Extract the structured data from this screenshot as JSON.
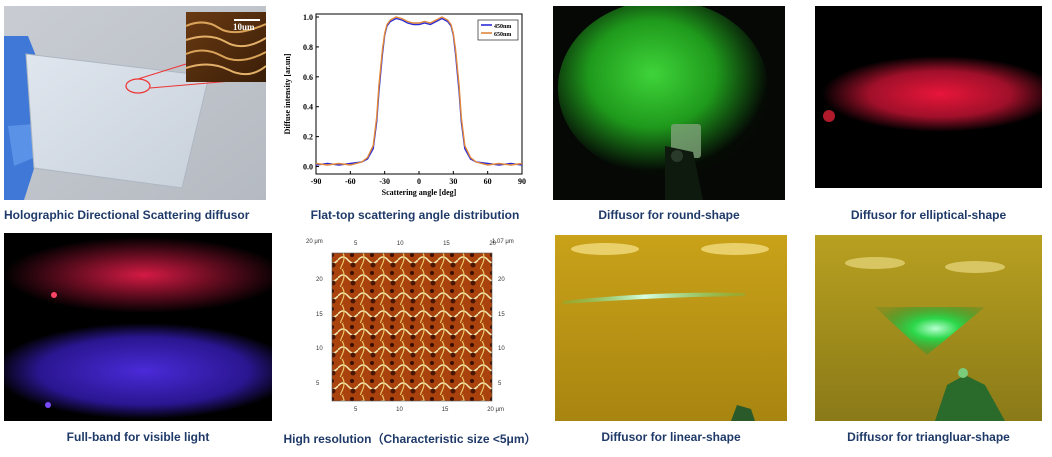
{
  "captions": {
    "holographic": "Holographic Directional Scattering diffusor",
    "flattop": "Flat-top scattering angle distribution",
    "round": "Diffusor for round-shape",
    "elliptical": "Diffusor for elliptical-shape",
    "fullband": "Full-band for visible light",
    "highres": "High resolution（Characteristic size <5μm）",
    "linear": "Diffusor for linear-shape",
    "triangular": "Diffusor for triangluar-shape"
  },
  "sem_inset": {
    "scale_label": "10um"
  },
  "afm_image": {
    "label_tl": "20 μm",
    "label_tr": "1.07 μm",
    "ticks_top": [
      "5",
      "10",
      "15",
      "20"
    ],
    "ticks_bottom": [
      "5",
      "10",
      "15",
      "20 μm"
    ],
    "ticks_left": [
      "20",
      "15",
      "10",
      "5"
    ],
    "ticks_right": [
      "20",
      "15",
      "10",
      "5"
    ]
  },
  "chart_data": {
    "type": "line",
    "xlabel": "Scattering angle [deg]",
    "ylabel": "Diffuse intensity [ar.un]",
    "xlim": [
      -90,
      90
    ],
    "ylim": [
      -0.05,
      1.02
    ],
    "xticks": [
      -90,
      -60,
      -30,
      0,
      30,
      60,
      90
    ],
    "yticks": [
      0.0,
      0.2,
      0.4,
      0.6,
      0.8,
      1.0
    ],
    "xtick_labels": [
      "-90",
      "-60",
      "-30",
      "0",
      "30",
      "60",
      "90"
    ],
    "ytick_labels": [
      "0.0",
      "0.2",
      "0.4",
      "0.6",
      "0.8",
      "1.0"
    ],
    "legend_position": "top-right",
    "grid": false,
    "series": [
      {
        "name": "450nm",
        "color": "#2b2bd6",
        "x": [
          -90,
          -80,
          -70,
          -60,
          -50,
          -45,
          -40,
          -37,
          -35,
          -32,
          -30,
          -28,
          -25,
          -20,
          -15,
          -10,
          -5,
          0,
          5,
          10,
          15,
          20,
          25,
          28,
          30,
          32,
          35,
          37,
          40,
          45,
          50,
          60,
          70,
          80,
          90
        ],
        "y": [
          0.01,
          0.02,
          0.01,
          0.02,
          0.03,
          0.05,
          0.12,
          0.3,
          0.5,
          0.75,
          0.88,
          0.94,
          0.97,
          0.99,
          0.98,
          0.96,
          0.95,
          0.95,
          0.96,
          0.95,
          0.97,
          0.99,
          0.97,
          0.94,
          0.88,
          0.75,
          0.5,
          0.3,
          0.12,
          0.05,
          0.03,
          0.02,
          0.01,
          0.02,
          0.01
        ]
      },
      {
        "name": "650nm",
        "color": "#e0873a",
        "x": [
          -90,
          -80,
          -70,
          -60,
          -50,
          -45,
          -40,
          -37,
          -35,
          -32,
          -30,
          -28,
          -25,
          -20,
          -15,
          -10,
          -5,
          0,
          5,
          10,
          15,
          20,
          25,
          28,
          30,
          32,
          35,
          37,
          40,
          45,
          50,
          60,
          70,
          80,
          90
        ],
        "y": [
          0.02,
          0.01,
          0.02,
          0.01,
          0.03,
          0.06,
          0.14,
          0.33,
          0.54,
          0.78,
          0.89,
          0.95,
          0.98,
          1.0,
          0.99,
          0.97,
          0.96,
          0.96,
          0.97,
          0.96,
          0.98,
          1.0,
          0.98,
          0.95,
          0.89,
          0.78,
          0.54,
          0.33,
          0.14,
          0.06,
          0.03,
          0.01,
          0.02,
          0.01,
          0.02
        ]
      }
    ]
  }
}
